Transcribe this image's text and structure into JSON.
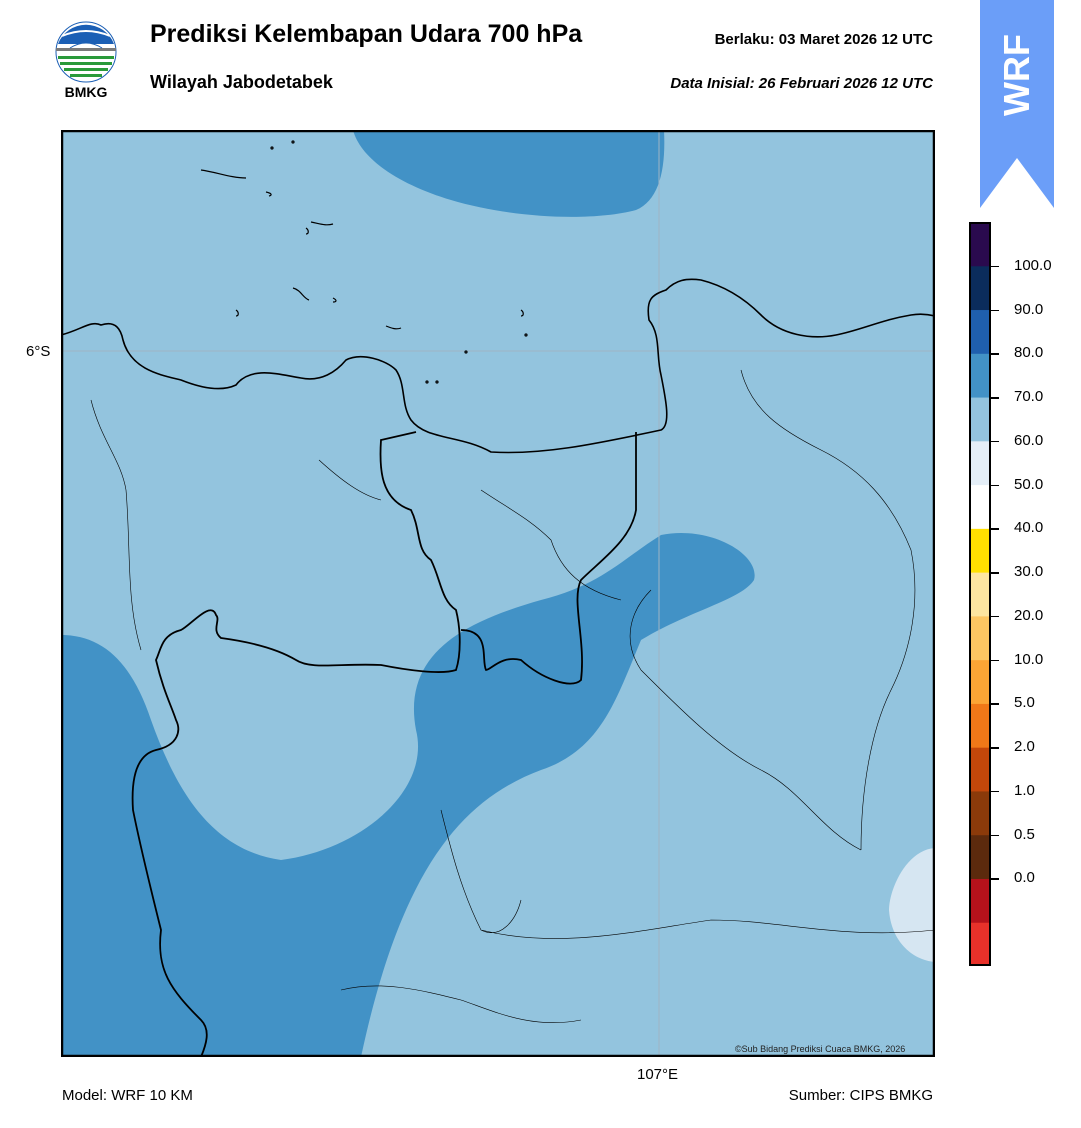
{
  "header": {
    "title": "Prediksi Kelembapan Udara 700 hPa",
    "subtitle": "Wilayah Jabodetabek",
    "valid_label": "Berlaku:  03 Maret 2026 12 UTC",
    "initial_label": "Data Inisial:  26 Februari 2026 12 UTC"
  },
  "logo": {
    "text": "BMKG",
    "icon": "bmkg-logo-icon"
  },
  "badge": {
    "text": "WRF",
    "color": "#6b9ef8"
  },
  "map": {
    "lat_label": "6°S",
    "lon_label": "107°E",
    "copyright": "©Sub Bidang Prediksi Cuaca BMKG, 2026",
    "fill_colors": {
      "band_60_70": "#93c4de",
      "band_70_80": "#4292c6",
      "band_50_60": "#d6e6f2"
    }
  },
  "footer": {
    "model": "Model: WRF 10 KM",
    "source": "Sumber: CIPS BMKG"
  },
  "colorbar": {
    "labels": [
      "100.0",
      "90.0",
      "80.0",
      "70.0",
      "60.0",
      "50.0",
      "40.0",
      "30.0",
      "20.0",
      "10.0",
      "5.0",
      "2.0",
      "1.0",
      "0.5",
      "0.0"
    ],
    "colors_bottom_to_top": [
      "#e8312a",
      "#b5121b",
      "#5c2a0d",
      "#8b3a0a",
      "#c4470a",
      "#f07818",
      "#fba535",
      "#fdc662",
      "#fde5a0",
      "#ffe000",
      "#ffffff",
      "#e4eef7",
      "#93c4de",
      "#4292c6",
      "#1f5fae",
      "#0b2c5c",
      "#2a0a4e"
    ]
  }
}
